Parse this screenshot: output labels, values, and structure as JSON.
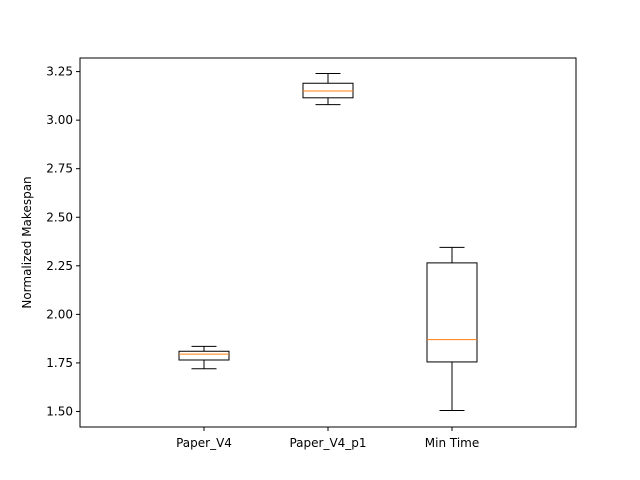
{
  "chart_data": {
    "type": "box",
    "title": "",
    "xlabel": "",
    "ylabel": "Normalized Makespan",
    "ylim": [
      1.42,
      3.32
    ],
    "yticks": [
      "1.50",
      "1.75",
      "2.00",
      "2.25",
      "2.50",
      "2.75",
      "3.00",
      "3.25"
    ],
    "grid": false,
    "categories": [
      "Paper_V4",
      "Paper_V4_p1",
      "Min Time"
    ],
    "boxes": [
      {
        "name": "Paper_V4",
        "whisker_low": 1.72,
        "q1": 1.765,
        "median": 1.795,
        "q3": 1.81,
        "whisker_high": 1.835
      },
      {
        "name": "Paper_V4_p1",
        "whisker_low": 3.08,
        "q1": 3.115,
        "median": 3.15,
        "q3": 3.19,
        "whisker_high": 3.24
      },
      {
        "name": "Min Time",
        "whisker_low": 1.505,
        "q1": 1.755,
        "median": 1.87,
        "q3": 2.265,
        "whisker_high": 2.345
      }
    ],
    "colors": {
      "box": "#000000",
      "median": "#ff7f0e"
    }
  }
}
